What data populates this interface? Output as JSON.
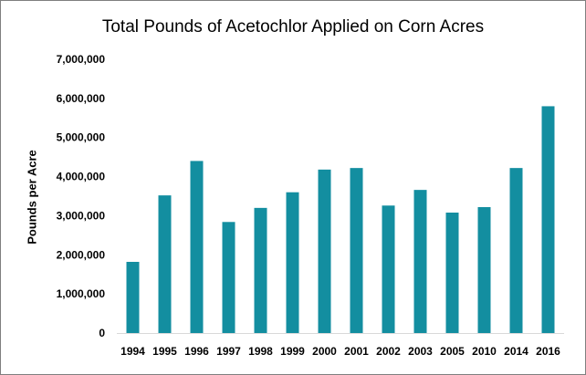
{
  "chart_data": {
    "type": "bar",
    "title": "Total Pounds of Acetochlor Applied on Corn Acres",
    "ylabel": "Pounds per Acre",
    "xlabel": "",
    "categories": [
      "1994",
      "1995",
      "1996",
      "1997",
      "1998",
      "1999",
      "2000",
      "2001",
      "2002",
      "2003",
      "2005",
      "2010",
      "2014",
      "2016"
    ],
    "values": [
      1820000,
      3520000,
      4400000,
      2840000,
      3200000,
      3600000,
      4180000,
      4220000,
      3260000,
      3660000,
      3080000,
      3220000,
      4220000,
      5800000
    ],
    "ylim": [
      0,
      7000000
    ],
    "yticks": [
      0,
      1000000,
      2000000,
      3000000,
      4000000,
      5000000,
      6000000,
      7000000
    ],
    "ytick_labels": [
      "0",
      "1,000,000",
      "2,000,000",
      "3,000,000",
      "4,000,000",
      "5,000,000",
      "6,000,000",
      "7,000,000"
    ],
    "bar_color": "#138ea0",
    "grid": false,
    "legend": "none"
  }
}
